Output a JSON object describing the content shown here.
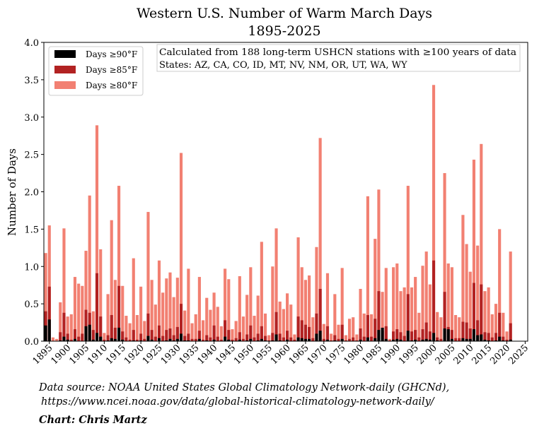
{
  "chart_data": {
    "type": "bar",
    "title": [
      "Western U.S. Number of Warm March Days",
      "1895-2025"
    ],
    "xlabel": "",
    "ylabel": "Number of Days",
    "ylim": [
      0,
      4.0
    ],
    "xlim": [
      1893.5,
      2025.7
    ],
    "yticks": [
      0.0,
      0.5,
      1.0,
      1.5,
      2.0,
      2.5,
      3.0,
      3.5,
      4.0
    ],
    "ytick_labels": [
      "0.0",
      "0.5",
      "1.0",
      "1.5",
      "2.0",
      "2.5",
      "3.0",
      "3.5",
      "4.0"
    ],
    "xticks": [
      1895,
      1900,
      1905,
      1910,
      1915,
      1920,
      1925,
      1930,
      1935,
      1940,
      1945,
      1950,
      1955,
      1960,
      1965,
      1970,
      1975,
      1980,
      1985,
      1990,
      1995,
      2000,
      2005,
      2010,
      2015,
      2020,
      2025
    ],
    "xtick_labels": [
      "1895",
      "1900",
      "1905",
      "1910",
      "1915",
      "1920",
      "1925",
      "1930",
      "1935",
      "1940",
      "1945",
      "1950",
      "1955",
      "1960",
      "1965",
      "1970",
      "1975",
      "1980",
      "1985",
      "1990",
      "1995",
      "2000",
      "2005",
      "2010",
      "2015",
      "2020",
      "2025"
    ],
    "grid": false,
    "legend_position": "top-left",
    "annotation": [
      "Calculated from 188 long-term USHCN stations with ≥100 years of data",
      "States: AZ, CA, CO, ID, MT, NV, NM, OR, UT, WA, WY"
    ],
    "x_start": 1894,
    "series": [
      {
        "name": "Days ≥80°F",
        "color": "#f28072",
        "values": [
          1.18,
          1.55,
          0.05,
          0.03,
          0.52,
          1.51,
          0.33,
          0.36,
          0.86,
          0.77,
          0.74,
          1.21,
          1.95,
          0.4,
          2.89,
          1.23,
          0.11,
          0.63,
          1.62,
          0.82,
          2.08,
          0.74,
          0.34,
          0.24,
          1.11,
          0.35,
          0.73,
          0.27,
          1.73,
          0.82,
          0.49,
          1.08,
          0.65,
          0.84,
          0.92,
          0.59,
          0.85,
          2.52,
          0.41,
          0.97,
          0.24,
          0.36,
          0.86,
          0.28,
          0.58,
          0.42,
          0.65,
          0.46,
          0.2,
          0.97,
          0.83,
          0.16,
          0.27,
          0.87,
          0.33,
          0.62,
          0.99,
          0.34,
          0.61,
          1.33,
          0.37,
          0.08,
          1.0,
          1.51,
          0.53,
          0.43,
          0.64,
          0.49,
          0.09,
          1.39,
          0.99,
          0.82,
          0.88,
          0.32,
          1.26,
          2.72,
          0.23,
          0.91,
          0.1,
          0.63,
          0.22,
          0.98,
          0.08,
          0.3,
          0.32,
          0.09,
          0.7,
          0.37,
          1.94,
          0.36,
          1.37,
          2.03,
          0.66,
          0.98,
          0.03,
          0.99,
          1.04,
          0.67,
          0.72,
          2.08,
          0.72,
          0.86,
          0.38,
          1.01,
          1.2,
          0.76,
          3.43,
          0.39,
          0.32,
          2.25,
          1.04,
          0.99,
          0.35,
          0.32,
          1.69,
          1.3,
          0.93,
          2.43,
          1.28,
          2.64,
          0.67,
          0.72,
          0.36,
          0.5,
          1.5,
          0.38,
          0.13,
          1.2
        ]
      },
      {
        "name": "Days ≥85°F",
        "color": "#b22222",
        "values": [
          0.4,
          0.73,
          0.0,
          0.0,
          0.12,
          0.38,
          0.1,
          0.02,
          0.16,
          0.06,
          0.1,
          0.42,
          0.38,
          0.15,
          0.91,
          0.33,
          0.02,
          0.08,
          0.35,
          0.18,
          0.74,
          0.13,
          0.05,
          0.02,
          0.15,
          0.02,
          0.1,
          0.03,
          0.37,
          0.15,
          0.06,
          0.21,
          0.07,
          0.15,
          0.17,
          0.08,
          0.19,
          0.5,
          0.07,
          0.1,
          0.03,
          0.03,
          0.14,
          0.02,
          0.08,
          0.05,
          0.21,
          0.06,
          0.02,
          0.28,
          0.15,
          0.02,
          0.04,
          0.12,
          0.03,
          0.09,
          0.21,
          0.05,
          0.1,
          0.2,
          0.07,
          0.01,
          0.11,
          0.39,
          0.1,
          0.05,
          0.14,
          0.05,
          0.02,
          0.33,
          0.28,
          0.22,
          0.19,
          0.04,
          0.37,
          0.7,
          0.03,
          0.2,
          0.01,
          0.08,
          0.03,
          0.22,
          0.01,
          0.03,
          0.05,
          0.01,
          0.17,
          0.06,
          0.35,
          0.06,
          0.3,
          0.67,
          0.14,
          0.2,
          0.01,
          0.13,
          0.16,
          0.12,
          0.07,
          0.63,
          0.13,
          0.15,
          0.05,
          0.16,
          0.25,
          0.13,
          1.08,
          0.05,
          0.03,
          0.66,
          0.19,
          0.15,
          0.04,
          0.04,
          0.26,
          0.25,
          0.17,
          0.78,
          0.28,
          0.76,
          0.12,
          0.11,
          0.05,
          0.11,
          0.38,
          0.06,
          0.02,
          0.24
        ]
      },
      {
        "name": "Days ≥90°F",
        "color": "#000000",
        "values": [
          0.21,
          0.29,
          0.0,
          0.0,
          0.01,
          0.06,
          0.02,
          0.0,
          0.03,
          0.0,
          0.0,
          0.2,
          0.22,
          0.02,
          0.11,
          0.06,
          0.0,
          0.01,
          0.04,
          0.03,
          0.18,
          0.02,
          0.0,
          0.0,
          0.01,
          0.0,
          0.01,
          0.0,
          0.07,
          0.02,
          0.0,
          0.04,
          0.0,
          0.01,
          0.03,
          0.01,
          0.03,
          0.1,
          0.01,
          0.01,
          0.0,
          0.0,
          0.03,
          0.0,
          0.01,
          0.0,
          0.02,
          0.0,
          0.0,
          0.06,
          0.02,
          0.0,
          0.0,
          0.02,
          0.0,
          0.01,
          0.03,
          0.0,
          0.01,
          0.03,
          0.01,
          0.0,
          0.01,
          0.09,
          0.01,
          0.0,
          0.02,
          0.0,
          0.0,
          0.05,
          0.04,
          0.03,
          0.03,
          0.0,
          0.1,
          0.14,
          0.0,
          0.02,
          0.0,
          0.01,
          0.0,
          0.03,
          0.0,
          0.0,
          0.0,
          0.0,
          0.02,
          0.0,
          0.05,
          0.0,
          0.04,
          0.15,
          0.18,
          0.03,
          0.0,
          0.02,
          0.03,
          0.02,
          0.0,
          0.14,
          0.01,
          0.02,
          0.0,
          0.02,
          0.03,
          0.02,
          0.11,
          0.01,
          0.0,
          0.17,
          0.16,
          0.03,
          0.0,
          0.0,
          0.04,
          0.03,
          0.03,
          0.16,
          0.08,
          0.09,
          0.02,
          0.01,
          0.0,
          0.01,
          0.06,
          0.01,
          0.0,
          0.02
        ]
      }
    ]
  },
  "footer": {
    "source_line1": "Data source: NOAA United States Global Climatology Network-daily (GHCNd),",
    "source_line2": "https://www.ncei.noaa.gov/data/global-historical-climatology-network-daily/",
    "credit": "Chart: Chris Martz"
  }
}
